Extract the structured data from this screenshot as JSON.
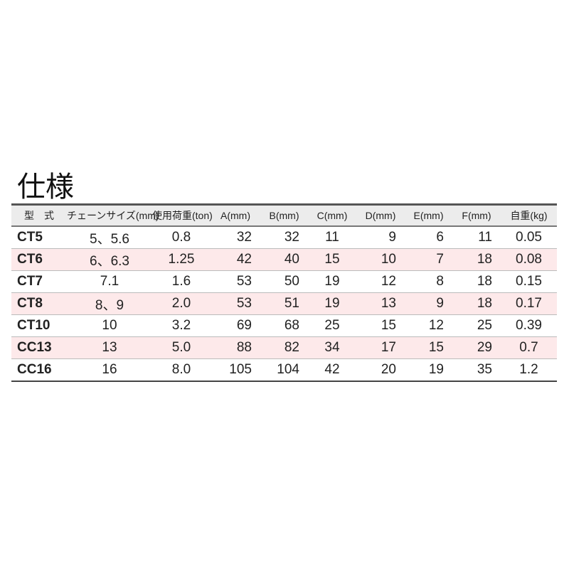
{
  "title": "仕様",
  "table": {
    "headers": [
      "型　式",
      "チェーンサイズ(mm)",
      "使用荷重(ton)",
      "A(mm)",
      "B(mm)",
      "C(mm)",
      "D(mm)",
      "E(mm)",
      "F(mm)",
      "自重(kg)"
    ],
    "rows": [
      [
        "CT5",
        "5、5.6",
        "0.8",
        "32",
        "32",
        "11",
        "9",
        "6",
        "11",
        "0.05"
      ],
      [
        "CT6",
        "6、6.3",
        "1.25",
        "42",
        "40",
        "15",
        "10",
        "7",
        "18",
        "0.08"
      ],
      [
        "CT7",
        "7.1",
        "1.6",
        "53",
        "50",
        "19",
        "12",
        "8",
        "18",
        "0.15"
      ],
      [
        "CT8",
        "8、9",
        "2.0",
        "53",
        "51",
        "19",
        "13",
        "9",
        "18",
        "0.17"
      ],
      [
        "CT10",
        "10",
        "3.2",
        "69",
        "68",
        "25",
        "15",
        "12",
        "25",
        "0.39"
      ],
      [
        "CC13",
        "13",
        "5.0",
        "88",
        "82",
        "34",
        "17",
        "15",
        "29",
        "0.7"
      ],
      [
        "CC16",
        "16",
        "8.0",
        "105",
        "104",
        "42",
        "20",
        "19",
        "35",
        "1.2"
      ]
    ],
    "row_highlight_color": "#fde9ea",
    "header_bg": "#ececec"
  }
}
